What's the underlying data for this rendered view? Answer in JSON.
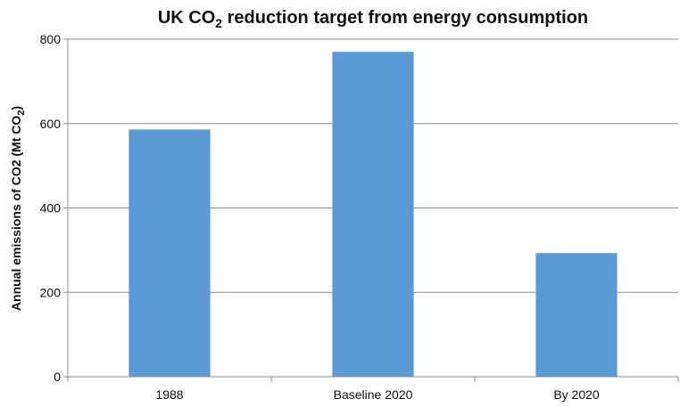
{
  "chart_data": {
    "type": "bar",
    "title": {
      "prefix": "UK CO",
      "subscript": "2",
      "suffix": " reduction target from energy consumption"
    },
    "ylabel": {
      "prefix": "Annual emissions of CO2 (Mt CO",
      "subscript": "2",
      "suffix": ")"
    },
    "xlabel": "",
    "categories": [
      "1988",
      "Baseline 2020",
      "By 2020"
    ],
    "values": [
      586,
      770,
      293
    ],
    "ylim": [
      0,
      800
    ],
    "yticks": [
      "0",
      "200",
      "400",
      "600",
      "800"
    ],
    "grid": true,
    "legend": "none",
    "colors": {
      "bar": "#5b9bd5",
      "grid": "#8c8c8c"
    }
  }
}
